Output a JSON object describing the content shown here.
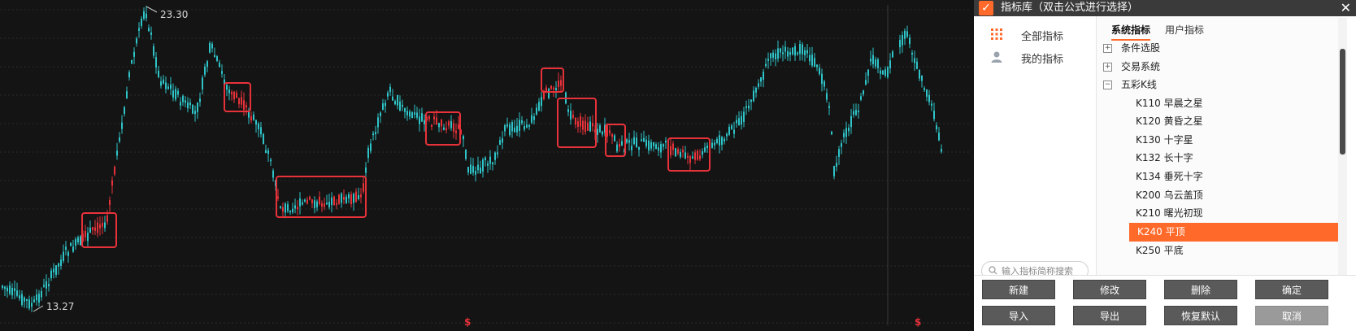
{
  "chart": {
    "high_label": "23.30",
    "low_label": "13.27",
    "marker_glyph": "$",
    "colors": {
      "up": "#2ec4c8",
      "down": "#e8323a",
      "box": "#e8323a",
      "background": "#141414",
      "grid": "#2a2a2a",
      "marker": "#e8323a"
    }
  },
  "dialog": {
    "title": "指标库（双击公式进行选择）",
    "logo_glyph": "✓",
    "close_glyph": "✕",
    "accent": "#ff6a2a",
    "nav": [
      {
        "label": "全部指标",
        "icon": "grid-icon"
      },
      {
        "label": "我的指标",
        "icon": "user-icon"
      }
    ],
    "search": {
      "placeholder": "输入指标简称搜索"
    },
    "tabs": [
      {
        "label": "系统指标",
        "active": true
      },
      {
        "label": "用户指标",
        "active": false
      }
    ],
    "tree": [
      {
        "label": "条件选股",
        "type": "group",
        "expanded": false,
        "toggle": "+"
      },
      {
        "label": "交易系统",
        "type": "group",
        "expanded": false,
        "toggle": "+"
      },
      {
        "label": "五彩K线",
        "type": "group",
        "expanded": true,
        "toggle": "−"
      },
      {
        "label": "K110 早晨之星",
        "type": "item"
      },
      {
        "label": "K120 黄昏之星",
        "type": "item"
      },
      {
        "label": "K130 十字星",
        "type": "item"
      },
      {
        "label": "K132 长十字",
        "type": "item"
      },
      {
        "label": "K134 垂死十字",
        "type": "item"
      },
      {
        "label": "K200 乌云盖顶",
        "type": "item"
      },
      {
        "label": "K210 曙光初现",
        "type": "item"
      },
      {
        "label": "K240 平顶",
        "type": "item",
        "selected": true
      },
      {
        "label": "K250 平底",
        "type": "item"
      }
    ],
    "buttons": {
      "new": "新建",
      "edit": "修改",
      "delete": "删除",
      "ok": "确定",
      "import": "导入",
      "export": "导出",
      "restore": "恢复默认",
      "cancel": "取消"
    }
  }
}
